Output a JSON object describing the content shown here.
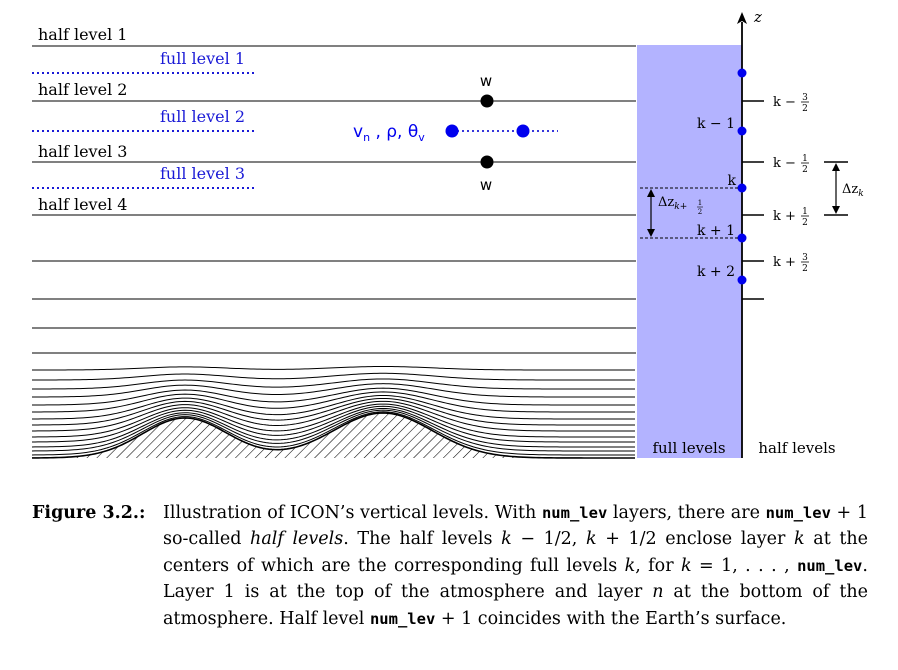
{
  "left_panel": {
    "half_levels": [
      "half level 1",
      "half level 2",
      "half level 3",
      "half level 4"
    ],
    "full_levels": [
      "full level 1",
      "full level 2",
      "full level 3"
    ],
    "w_top": "w",
    "w_bottom": "w",
    "prognostic_vars": [
      "v",
      "n",
      " , ρ, θ",
      "v"
    ]
  },
  "right_panel": {
    "axis_label": "z",
    "full_label_k_minus_1": "k − 1",
    "full_label_k": "k",
    "full_label_k_plus_1": "k + 1",
    "full_label_k_plus_2": "k + 2",
    "half_label_prefix": [
      "k −",
      "k −",
      "k +",
      "k +"
    ],
    "half_label_num": [
      "3",
      "1",
      "1",
      "3"
    ],
    "half_label_den": [
      "2",
      "2",
      "2",
      "2"
    ],
    "delta_z_half": "Δz",
    "delta_z_half_sub_prefix": "k+",
    "delta_z_half_num": "1",
    "delta_z_half_den": "2",
    "delta_z_full": "Δz",
    "delta_z_full_sub": "k",
    "full_levels_caption": "full levels",
    "half_levels_caption": "half levels"
  },
  "colors": {
    "full_level_blue": "#1a1ad6",
    "column_fill": "#b3b3ff",
    "point_blue": "#0000ee",
    "line_black": "#000000"
  },
  "caption": {
    "label": "Figure 3.2.:",
    "t1": "Illustration of ICON’s vertical levels. With ",
    "c1": "num_lev",
    "t2": " layers, there are ",
    "c2": "num_lev",
    "t3": " + 1 so-called ",
    "i1": "half levels",
    "t4": ". The half levels ",
    "m1": "k",
    "t5": " − 1/2, ",
    "m2": "k",
    "t6": " + 1/2 enclose layer ",
    "m3": "k",
    "t7": " at the centers of which are the corresponding full levels ",
    "m4": "k",
    "t8": ", for ",
    "m5": "k",
    "t9": " = 1, . . . , ",
    "c3": "num_lev",
    "t10": ". Layer 1 is at the top of the atmosphere and layer ",
    "m6": "n",
    "t11": " at the bottom of the atmosphere. Half level ",
    "c4": "num_lev",
    "t12": " + 1 coincides with the Earth’s surface."
  }
}
